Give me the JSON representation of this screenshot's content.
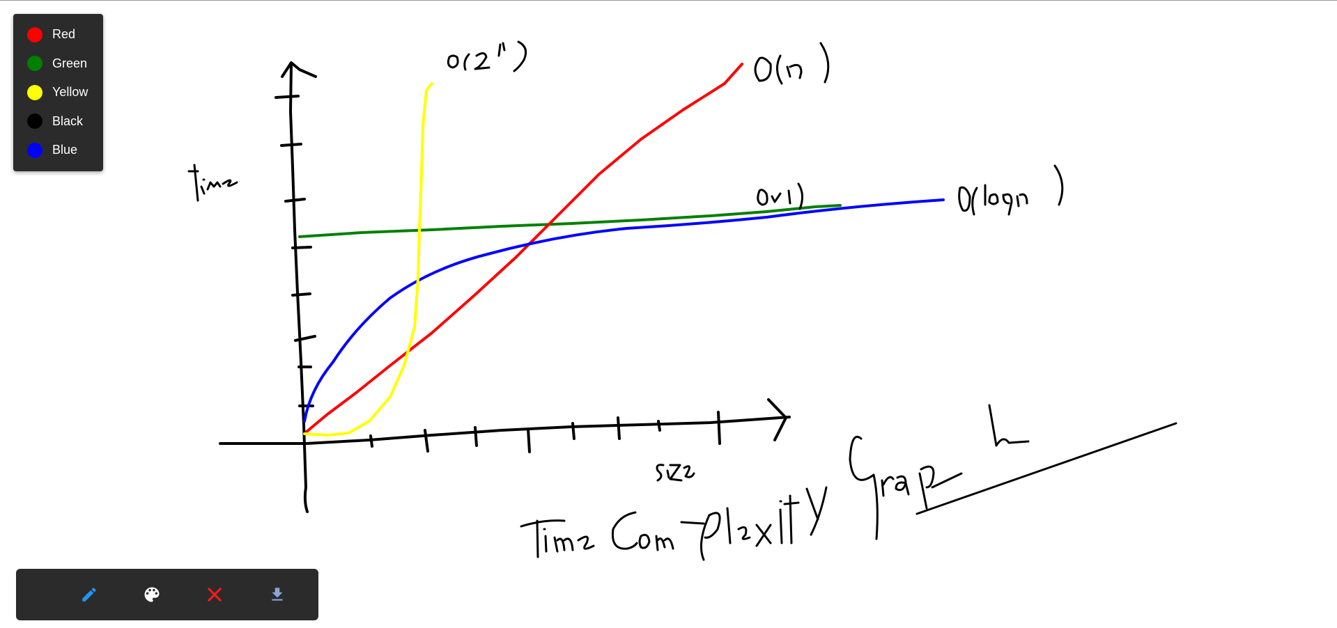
{
  "palette": {
    "items": [
      {
        "label": "Red",
        "color": "#ff0000"
      },
      {
        "label": "Green",
        "color": "#008000"
      },
      {
        "label": "Yellow",
        "color": "#ffff00"
      },
      {
        "label": "Black",
        "color": "#000000"
      },
      {
        "label": "Blue",
        "color": "#0000ff"
      }
    ]
  },
  "toolbar": {
    "tools": [
      {
        "icon": "pencil-icon",
        "color": "#2196f3"
      },
      {
        "icon": "palette-icon",
        "color": "#ffffff"
      },
      {
        "icon": "close-icon",
        "color": "#ff1a1a"
      },
      {
        "icon": "download-icon",
        "color": "#8aa6d6"
      }
    ]
  },
  "drawing": {
    "handwritten_text": [
      "time",
      "size",
      "O(2ⁿ)",
      "O(n)",
      "O(1)",
      "O(logn)",
      "Time Complexity Graph"
    ],
    "stroke_colors": {
      "axes": "#000000",
      "constant": "#008000",
      "linear": "#ff0000",
      "logarithmic": "#0000ff",
      "exponential": "#ffff00"
    }
  }
}
